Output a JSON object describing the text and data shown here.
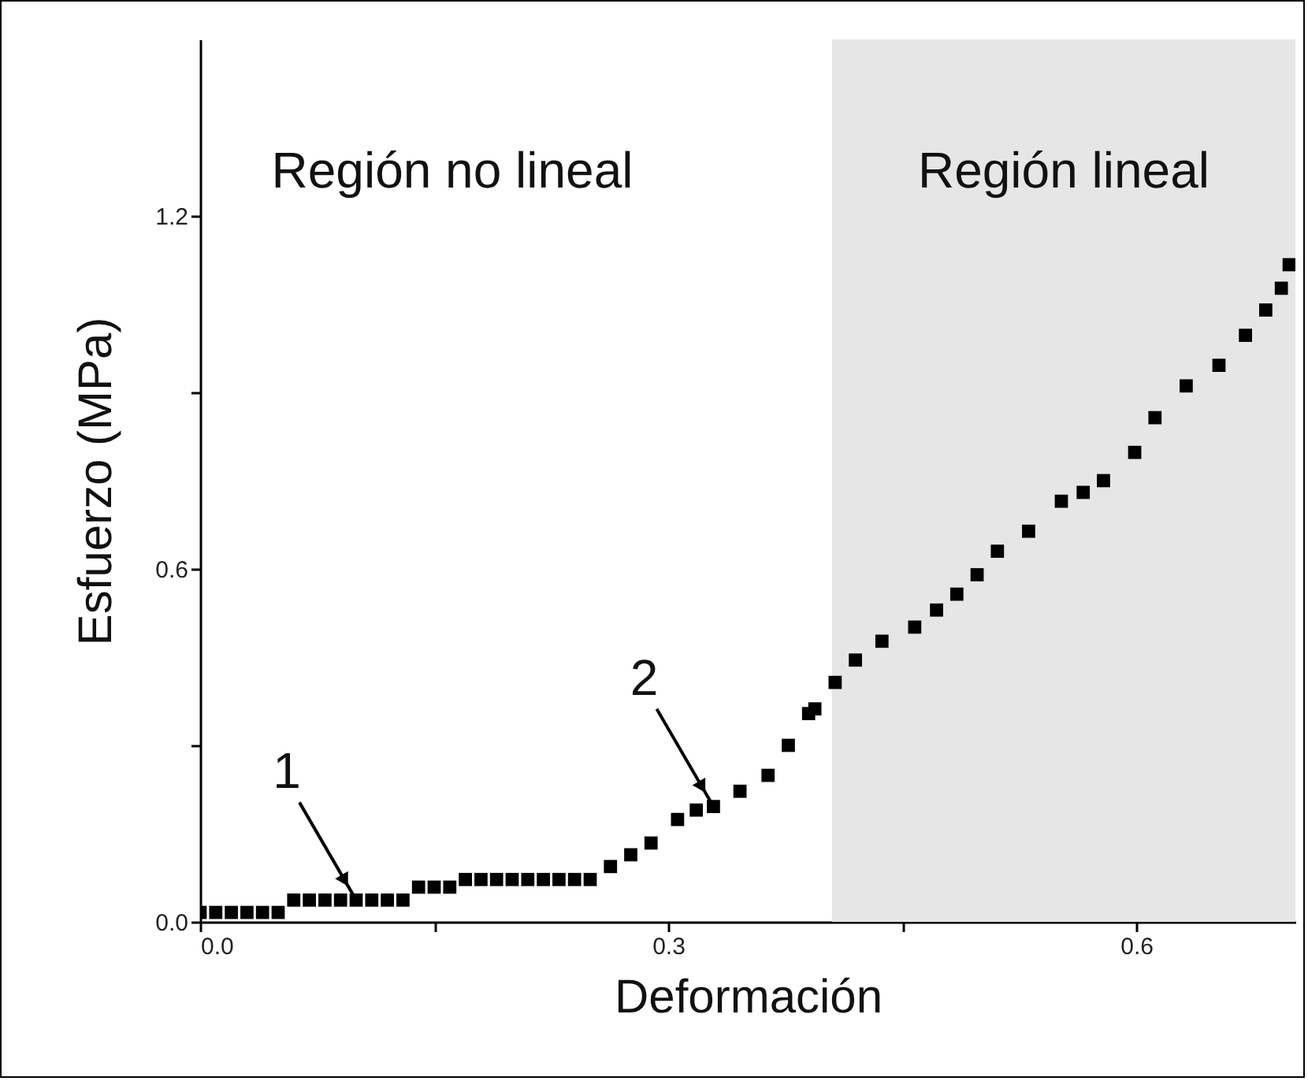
{
  "chart_data": {
    "type": "scatter",
    "xlabel": "Deformación",
    "ylabel": "Esfuerzo (MPa)",
    "series": [
      {
        "color": "#000000",
        "x": [
          0.0,
          0.01,
          0.02,
          0.03,
          0.04,
          0.05,
          0.06,
          0.07,
          0.08,
          0.09,
          0.1,
          0.11,
          0.12,
          0.13,
          0.14,
          0.15,
          0.16,
          0.17,
          0.18,
          0.19,
          0.2,
          0.21,
          0.22,
          0.23,
          0.24,
          0.25,
          0.263,
          0.276,
          0.289,
          0.306,
          0.318,
          0.329,
          0.346,
          0.364,
          0.377,
          0.39,
          0.394,
          0.407,
          0.42,
          0.437,
          0.458,
          0.472,
          0.485,
          0.498,
          0.511,
          0.531,
          0.552,
          0.566,
          0.579,
          0.599,
          0.612,
          0.632,
          0.653,
          0.67,
          0.683,
          0.693,
          0.698
        ],
        "values": [
          0.016,
          0.016,
          0.016,
          0.016,
          0.016,
          0.016,
          0.037,
          0.037,
          0.037,
          0.037,
          0.037,
          0.037,
          0.037,
          0.037,
          0.059,
          0.059,
          0.059,
          0.072,
          0.072,
          0.072,
          0.072,
          0.072,
          0.072,
          0.072,
          0.072,
          0.072,
          0.094,
          0.114,
          0.134,
          0.174,
          0.19,
          0.196,
          0.222,
          0.249,
          0.3,
          0.354,
          0.362,
          0.407,
          0.445,
          0.477,
          0.501,
          0.53,
          0.557,
          0.59,
          0.63,
          0.664,
          0.715,
          0.73,
          0.75,
          0.798,
          0.857,
          0.911,
          0.946,
          0.997,
          1.04,
          1.077,
          1.117
        ]
      }
    ],
    "marker": "square",
    "grid": false,
    "xlim": [
      0,
      0.702
    ],
    "xticks": [
      {
        "value": 0,
        "label": "0.0"
      },
      {
        "value": 0.15,
        "label": null
      },
      {
        "value": 0.3,
        "label": "0.3"
      },
      {
        "value": 0.45,
        "label": null
      },
      {
        "value": 0.6,
        "label": "0.6"
      }
    ],
    "ylim": [
      0,
      1.5
    ],
    "yticks": [
      {
        "value": 0,
        "label": "0.0"
      },
      {
        "value": 0.3,
        "label": null
      },
      {
        "value": 0.6,
        "label": "0.6"
      },
      {
        "value": 0.9,
        "label": null
      },
      {
        "value": 1.2,
        "label": "1.2"
      }
    ],
    "bands": [
      {
        "axis": "x",
        "from": 0.405,
        "to": 0.702,
        "label": "Región lineal",
        "color": "#e6e6e6"
      }
    ],
    "annotations": [
      "Región no lineal",
      {
        "text": "1",
        "x": 0.1,
        "y": 0.037
      },
      {
        "text": "2",
        "x": 0.329,
        "y": 0.196
      }
    ]
  }
}
